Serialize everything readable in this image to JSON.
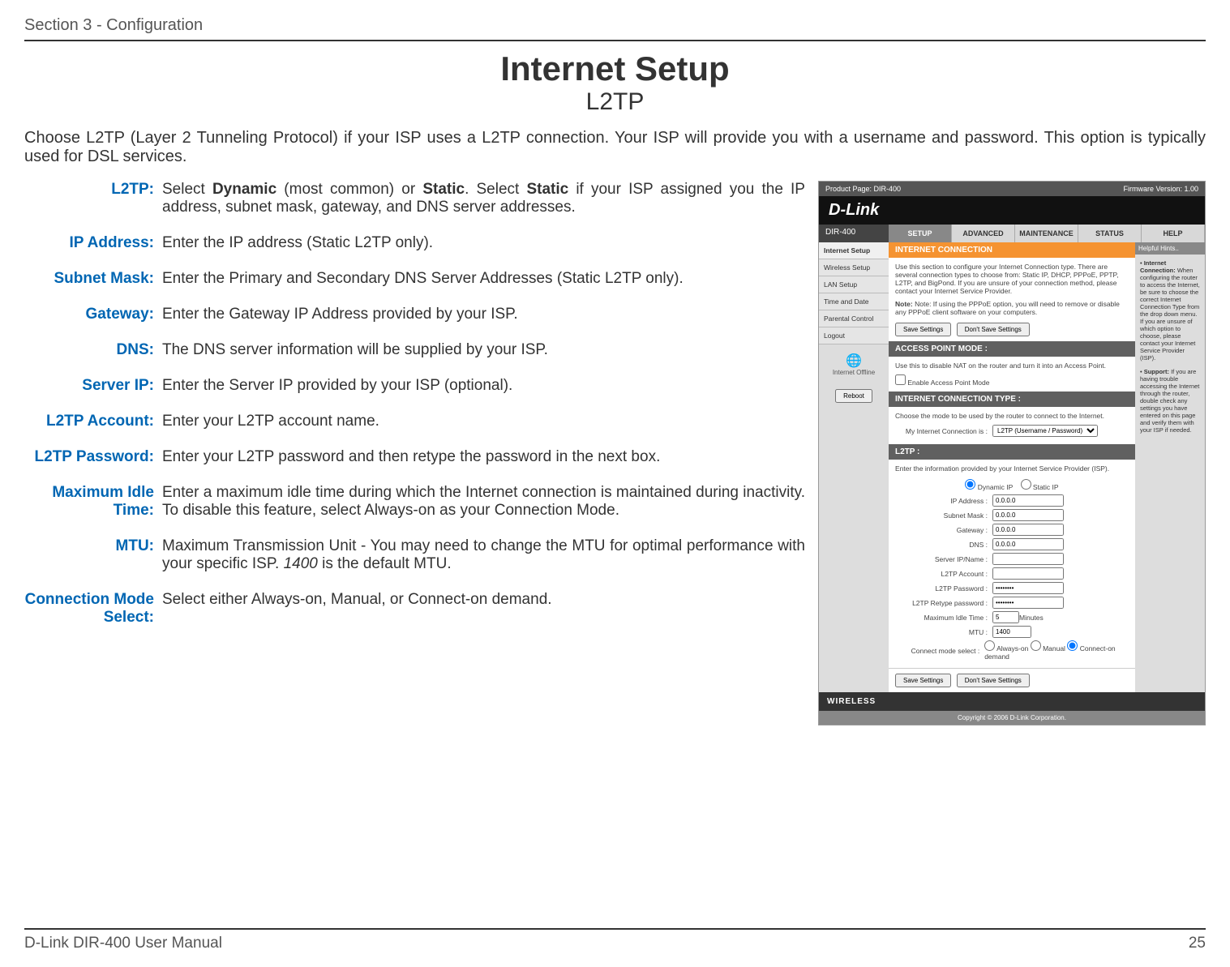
{
  "header": {
    "section_label": "Section 3 - Configuration"
  },
  "title": "Internet Setup",
  "subtitle": "L2TP",
  "intro": "Choose L2TP (Layer 2 Tunneling Protocol) if your ISP uses a L2TP connection. Your ISP will provide you with a username and password. This option is typically used for DSL services.",
  "definitions": [
    {
      "label": "L2TP:",
      "text_html": "Select <b>Dynamic</b> (most common) or <b>Static</b>. Select <b>Static</b> if your ISP assigned you the IP address, subnet mask, gateway, and DNS server addresses."
    },
    {
      "label": "IP Address:",
      "text_html": "Enter the IP address (Static L2TP only)."
    },
    {
      "label": "Subnet Mask:",
      "text_html": "Enter the Primary and Secondary DNS Server Addresses (Static L2TP only)."
    },
    {
      "label": "Gateway:",
      "text_html": "Enter the Gateway IP Address provided by your ISP."
    },
    {
      "label": "DNS:",
      "text_html": "The DNS server information will be supplied by your ISP."
    },
    {
      "label": "Server IP:",
      "text_html": "Enter the Server IP provided by your ISP (optional)."
    },
    {
      "label": "L2TP Account:",
      "text_html": "Enter your L2TP account name."
    },
    {
      "label": "L2TP Password:",
      "text_html": "Enter your L2TP password and then retype the password in the next box."
    },
    {
      "label": "Maximum Idle Time:",
      "text_html": "Enter a maximum idle time during which the Internet connection is maintained during inactivity. To disable this feature, select Always-on as your Connection Mode."
    },
    {
      "label": "MTU:",
      "text_html": "Maximum Transmission Unit - You may need to change the MTU for optimal performance with your specific ISP. <i>1400</i> is the default MTU."
    },
    {
      "label": "Connection Mode Select:",
      "text_html": "Select either Always-on, Manual, or Connect-on demand."
    }
  ],
  "footer": {
    "manual": "D-Link DIR-400 User Manual",
    "page": "25"
  },
  "router": {
    "product_page": "Product Page: DIR-400",
    "firmware": "Firmware Version: 1.00",
    "logo": "D-Link",
    "model": "DIR-400",
    "tabs": [
      "SETUP",
      "ADVANCED",
      "MAINTENANCE",
      "STATUS",
      "HELP"
    ],
    "active_tab": 0,
    "side_items": [
      "Internet Setup",
      "Wireless Setup",
      "LAN Setup",
      "Time and Date",
      "Parental Control",
      "Logout"
    ],
    "active_side": 0,
    "side_status_label": "Internet Offline",
    "reboot_label": "Reboot",
    "panel_internet_title": "INTERNET CONNECTION",
    "panel_internet_text": "Use this section to configure your Internet Connection type. There are several connection types to choose from: Static IP, DHCP, PPPoE, PPTP, L2TP, and BigPond. If you are unsure of your connection method, please contact your Internet Service Provider.",
    "panel_internet_note": "Note: If using the PPPoE option, you will need to remove or disable any PPPoE client software on your computers.",
    "save_btn": "Save Settings",
    "dont_save_btn": "Don't Save Settings",
    "panel_ap_title": "ACCESS POINT MODE :",
    "panel_ap_text": "Use this to disable NAT on the router and turn it into an Access Point.",
    "ap_checkbox_label": "Enable Access Point Mode",
    "panel_conn_title": "INTERNET CONNECTION TYPE :",
    "panel_conn_text": "Choose the mode to be used by the router to connect to the Internet.",
    "conn_label": "My Internet Connection is :",
    "conn_value": "L2TP (Username / Password)",
    "panel_l2tp_title": "L2TP :",
    "panel_l2tp_text": "Enter the information provided by your Internet Service Provider (ISP).",
    "form": {
      "dynamic_ip_label": "Dynamic IP",
      "static_ip_label": "Static IP",
      "ip_address_label": "IP Address :",
      "ip_address_value": "0.0.0.0",
      "subnet_label": "Subnet Mask :",
      "subnet_value": "0.0.0.0",
      "gateway_label": "Gateway :",
      "gateway_value": "0.0.0.0",
      "dns_label": "DNS :",
      "dns_value": "0.0.0.0",
      "server_label": "Server IP/Name :",
      "account_label": "L2TP Account :",
      "password_label": "L2TP Password :",
      "password_value": "••••••••",
      "retype_label": "L2TP Retype password :",
      "retype_value": "••••••••",
      "idle_label": "Maximum Idle Time :",
      "idle_value": "5",
      "idle_unit": "Minutes",
      "mtu_label": "MTU :",
      "mtu_value": "1400",
      "connmode_label": "Connect mode select :",
      "connmode_always": "Always-on",
      "connmode_manual": "Manual",
      "connmode_demand": "Connect-on demand"
    },
    "help_title": "Helpful Hints..",
    "help_item1_title": "Internet Connection:",
    "help_item1_text": "When configuring the router to access the Internet, be sure to choose the correct Internet Connection Type from the drop down menu. If you are unsure of which option to choose, please contact your Internet Service Provider (ISP).",
    "help_item2_title": "Support:",
    "help_item2_text": "If you are having trouble accessing the Internet through the router, double check any settings you have entered on this page and verify them with your ISP if needed.",
    "wireless_label": "WIRELESS",
    "copyright": "Copyright © 2006 D-Link Corporation."
  }
}
